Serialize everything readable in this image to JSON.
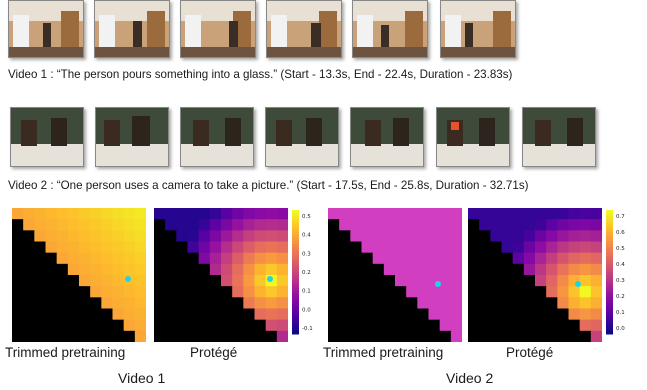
{
  "video1": {
    "caption": "Video 1 : “The person pours something into a glass.” (Start - 13.3s, End - 22.4s, Duration - 23.83s)",
    "frame_count": 6
  },
  "video2": {
    "caption": "Video 2 : “One person uses a camera to take a picture.” (Start - 17.5s, End - 25.8s, Duration - 32.71s)",
    "frame_count": 7
  },
  "heatmap_labels": {
    "v1_left": "Trimmed pretraining",
    "v1_right": "Protégé",
    "v2_left": "Trimmed pretraining",
    "v2_right": "Protégé",
    "video1": "Video 1",
    "video2": "Video 2"
  },
  "chart_data": [
    {
      "type": "heatmap",
      "name": "v1-protege",
      "colorbar_ticks": [
        "0.5",
        "0.4",
        "0.3",
        "0.2",
        "0.1",
        "0.0",
        "-0.1"
      ],
      "range": [
        -0.15,
        0.55
      ]
    },
    {
      "type": "heatmap",
      "name": "v2-protege",
      "colorbar_ticks": [
        "0.7",
        "0.6",
        "0.5",
        "0.4",
        "0.3",
        "0.2",
        "0.1",
        "0.0"
      ],
      "range": [
        -0.05,
        0.75
      ]
    }
  ],
  "colors": {
    "marker": "#22d3e6",
    "masked": "#000000",
    "v2_trimmed": "#d13fc0"
  }
}
